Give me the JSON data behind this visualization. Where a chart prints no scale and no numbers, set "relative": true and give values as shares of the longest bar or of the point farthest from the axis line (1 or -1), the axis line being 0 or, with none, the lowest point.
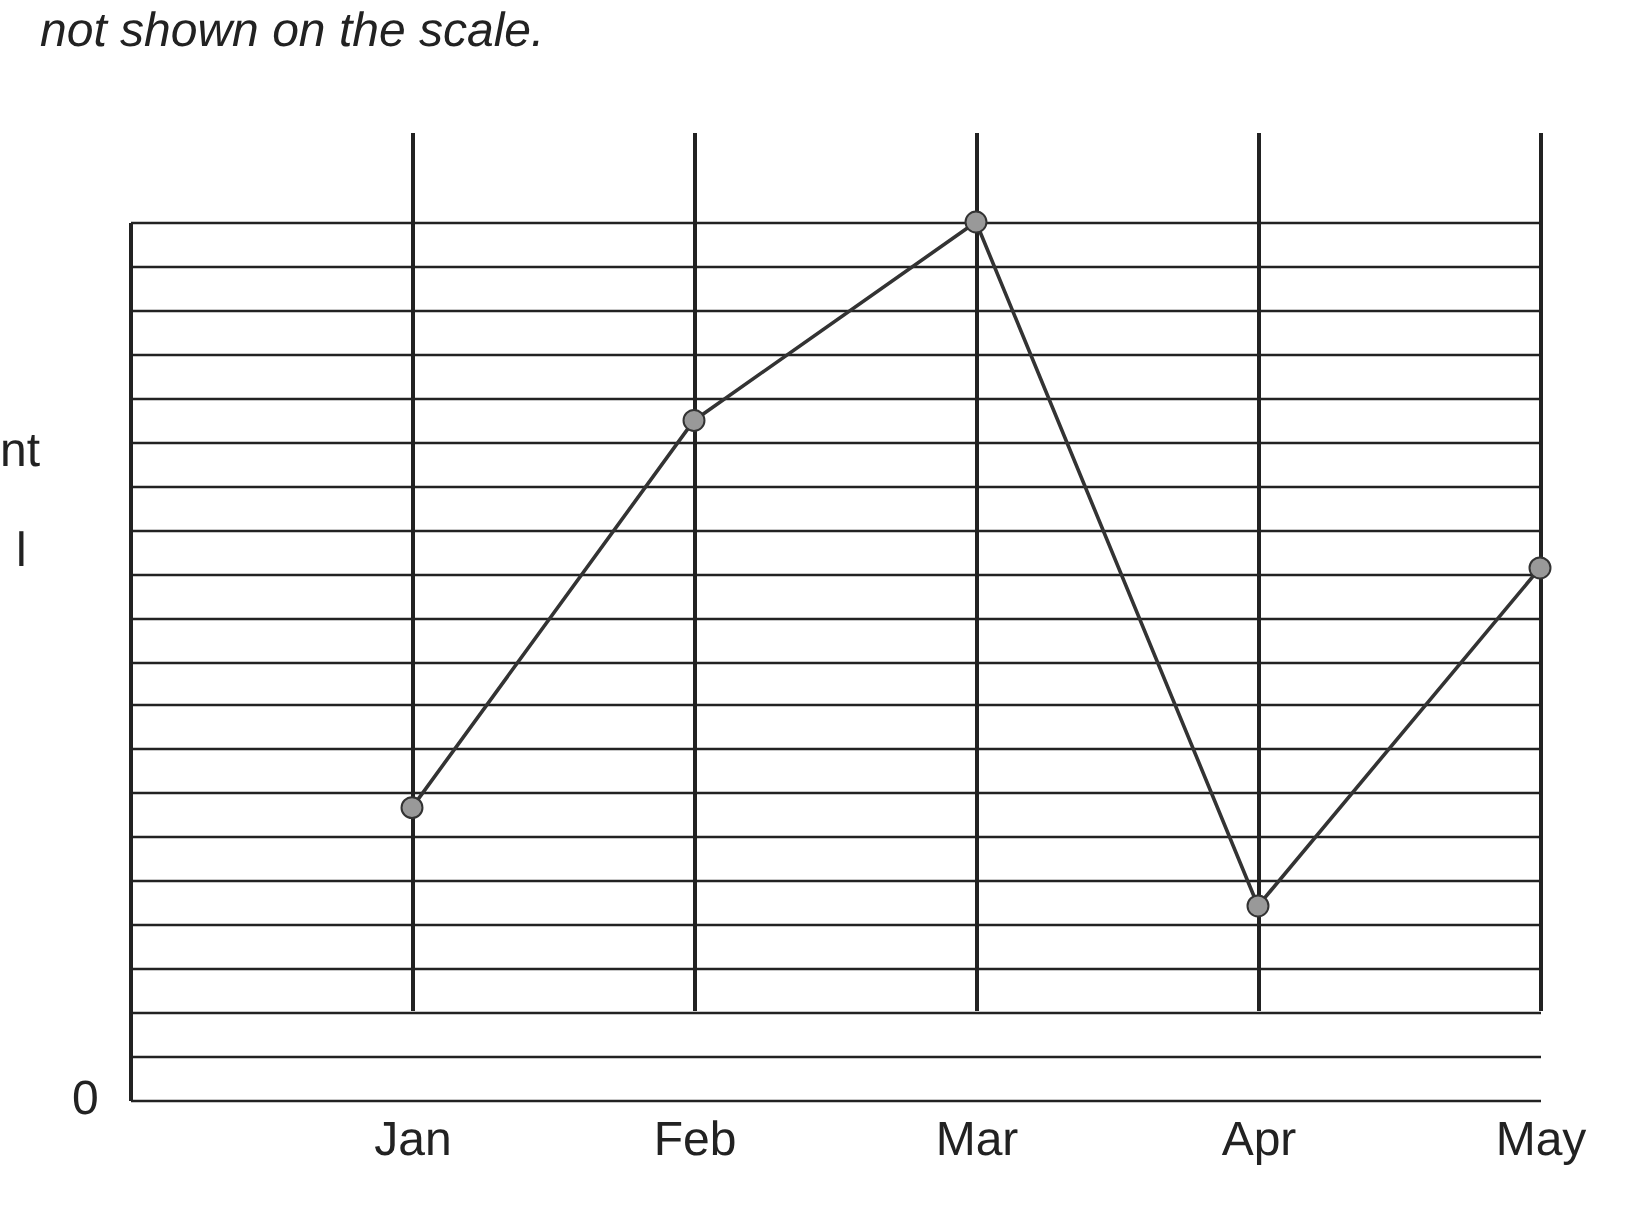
{
  "chart_data": {
    "type": "line",
    "relative": true,
    "categories": [
      "Jan",
      "Feb",
      "Mar",
      "Apr",
      "May"
    ],
    "values": [
      0.333,
      0.774,
      1,
      0.221,
      0.606
    ],
    "color": "#333333",
    "marker": "circle",
    "grid": true,
    "annotations": [
      "not shown on the scale.",
      "nt",
      "l",
      "0"
    ]
  }
}
